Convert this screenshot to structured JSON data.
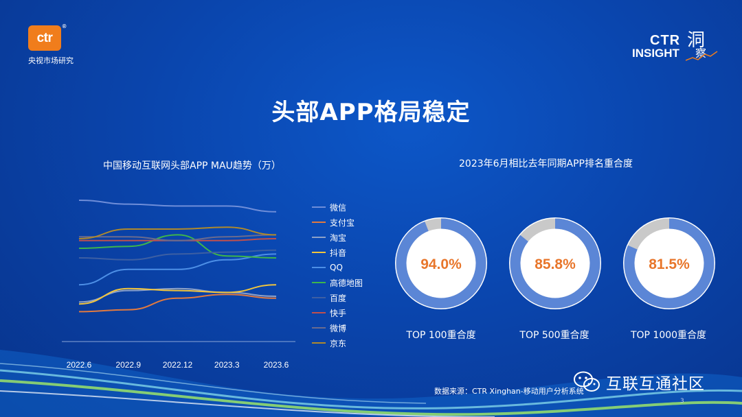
{
  "brand": {
    "logo_text": "ctr",
    "logo_reg": "®",
    "subtitle": "央视市场研究",
    "insight_ctr": "CTR",
    "insight_word": "INSIGHT",
    "insight_cn_1": "洞",
    "insight_cn_2": "察"
  },
  "title": "头部APP格局稳定",
  "left_chart_title": "中国移动互联网头部APP MAU趋势（万）",
  "right_chart_title": "2023年6月相比去年同期APP排名重合度",
  "colors": {
    "accent_orange": "#e8762b",
    "donut_fill": "#5b86d6",
    "donut_rest": "#c9c9c9"
  },
  "chart_data": [
    {
      "type": "line",
      "title": "中国移动互联网头部APP MAU趋势（万）",
      "x": [
        "2022.6",
        "2022.9",
        "2022.12",
        "2023.3",
        "2023.6"
      ],
      "series": [
        {
          "name": "微信",
          "color": "#6f8ed9",
          "values": [
            100,
            99,
            98.5,
            98.5,
            97
          ]
        },
        {
          "name": "支付宝",
          "color": "#e27a3f",
          "values": [
            71,
            71.5,
            74.5,
            75.5,
            74.5
          ]
        },
        {
          "name": "淘宝",
          "color": "#8ea2c8",
          "values": [
            73.5,
            76.5,
            77,
            76,
            75
          ]
        },
        {
          "name": "抖音",
          "color": "#f2c53d",
          "values": [
            73,
            77,
            76.5,
            76,
            78
          ]
        },
        {
          "name": "QQ",
          "color": "#4d8fe6",
          "values": [
            78,
            82,
            82,
            84.5,
            86
          ]
        },
        {
          "name": "高德地图",
          "color": "#3fb54b",
          "values": [
            87.5,
            88,
            91,
            85.5,
            85
          ]
        },
        {
          "name": "百度",
          "color": "#3d5fa3",
          "values": [
            85,
            84.5,
            86,
            86.5,
            87
          ]
        },
        {
          "name": "快手",
          "color": "#c0504d",
          "values": [
            89.5,
            89.5,
            89.5,
            89.5,
            90
          ]
        },
        {
          "name": "微博",
          "color": "#6b6b8e",
          "values": [
            90.5,
            90.5,
            89.5,
            90.5,
            91
          ]
        },
        {
          "name": "京东",
          "color": "#b08a2b",
          "values": [
            90,
            92.5,
            92.5,
            93,
            91
          ]
        }
      ]
    },
    {
      "type": "pie",
      "title": "2023年6月相比去年同期APP排名重合度",
      "categories": [
        "TOP 100重合度",
        "TOP 500重合度",
        "TOP 1000重合度"
      ],
      "values": [
        94.0,
        85.8,
        81.5
      ],
      "labels": [
        "94.0%",
        "85.8%",
        "81.5%"
      ]
    }
  ],
  "source": "数据来源：CTR Xinghan-移动用户分析系统",
  "wechat_name": "互联互通社区",
  "page_number": "3"
}
